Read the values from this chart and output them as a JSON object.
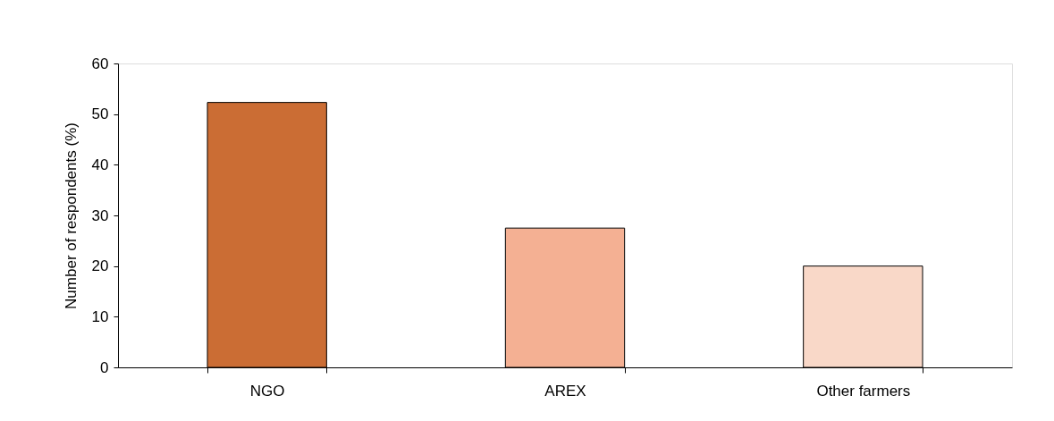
{
  "chart_data": {
    "type": "bar",
    "ylabel": "Number of respondents (%)",
    "categories": [
      "NGO",
      "AREX",
      "Other farmers"
    ],
    "values": [
      52.3,
      27.5,
      20
    ],
    "colors": [
      "#cb6d34",
      "#f4b093",
      "#f9d8c8"
    ],
    "ylim": [
      0,
      60
    ],
    "yticks": [
      0,
      10,
      20,
      30,
      40,
      50,
      60
    ],
    "grid": false
  }
}
